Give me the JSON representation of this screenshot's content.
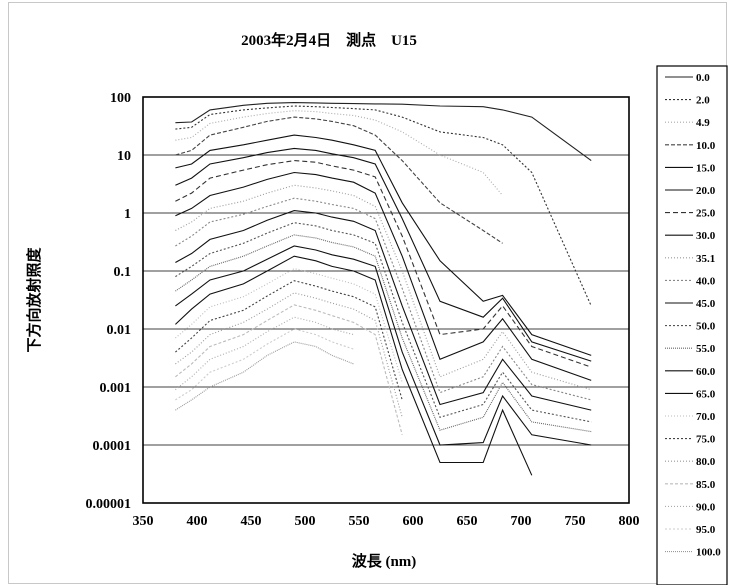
{
  "chart_data": {
    "type": "line",
    "title": "2003年2月4日　測点　U15",
    "xlabel": "波長 (nm)",
    "ylabel": "下方向放射照度",
    "xlim": [
      350,
      800
    ],
    "ylim": [
      1e-05,
      100
    ],
    "y_scale": "log",
    "grid": "horizontal",
    "legend_position": "right",
    "xticks": [
      "350",
      "400",
      "450",
      "500",
      "550",
      "600",
      "650",
      "700",
      "750",
      "800"
    ],
    "yticks": [
      "100",
      "10",
      "1",
      "0.1",
      "0.01",
      "0.001",
      "0.0001",
      "0.00001"
    ],
    "x": [
      380,
      395,
      412,
      443,
      465,
      490,
      510,
      525,
      545,
      565,
      590,
      625,
      665,
      683,
      710,
      765
    ],
    "series": [
      {
        "name": "0.0",
        "values": [
          36,
          37,
          60,
          72,
          78,
          80,
          79,
          78,
          77,
          76,
          75,
          70,
          68,
          60,
          45,
          8
        ]
      },
      {
        "name": "2.0",
        "values": [
          28,
          30,
          50,
          60,
          65,
          70,
          68,
          66,
          63,
          60,
          45,
          25,
          20,
          15,
          5,
          0.025
        ]
      },
      {
        "name": "4.9",
        "values": [
          18,
          20,
          35,
          45,
          52,
          58,
          56,
          52,
          48,
          40,
          25,
          10,
          5,
          2,
          null,
          null
        ]
      },
      {
        "name": "10.0",
        "values": [
          10,
          12,
          22,
          30,
          38,
          45,
          42,
          38,
          32,
          22,
          8,
          1.5,
          0.5,
          0.3,
          null,
          null
        ]
      },
      {
        "name": "15.0",
        "values": [
          6,
          7,
          12,
          15,
          18,
          22,
          20,
          18,
          15,
          12,
          1.5,
          0.15,
          0.03,
          0.038,
          0.008,
          0.0035
        ]
      },
      {
        "name": "20.0",
        "values": [
          3,
          4,
          7,
          9,
          11,
          13,
          12,
          10.5,
          9,
          7,
          0.8,
          0.03,
          0.016,
          0.034,
          0.006,
          0.0028
        ]
      },
      {
        "name": "25.0",
        "values": [
          1.6,
          2.2,
          4,
          5.5,
          6.8,
          8,
          7.5,
          6.5,
          5.5,
          4.2,
          0.4,
          0.008,
          0.01,
          0.025,
          0.005,
          0.0022
        ]
      },
      {
        "name": "30.0",
        "values": [
          0.9,
          1.2,
          2,
          2.8,
          3.8,
          5,
          4.6,
          4,
          3.4,
          2.2,
          0.18,
          0.003,
          0.006,
          0.015,
          0.003,
          0.0013
        ]
      },
      {
        "name": "35.1",
        "values": [
          0.5,
          0.7,
          1.2,
          1.6,
          2.2,
          3,
          2.7,
          2.4,
          2,
          1.3,
          0.1,
          0.0015,
          0.003,
          0.009,
          0.0018,
          0.0009
        ]
      },
      {
        "name": "40.0",
        "values": [
          0.27,
          0.4,
          0.7,
          0.95,
          1.3,
          1.8,
          1.6,
          1.4,
          1.2,
          0.8,
          0.05,
          0.0008,
          0.0015,
          0.005,
          0.0011,
          0.0006
        ]
      },
      {
        "name": "45.0",
        "values": [
          0.14,
          0.2,
          0.35,
          0.5,
          0.75,
          1.1,
          1,
          0.85,
          0.72,
          0.5,
          0.025,
          0.0005,
          0.0008,
          0.003,
          0.0007,
          0.0004
        ]
      },
      {
        "name": "50.0",
        "values": [
          0.08,
          0.12,
          0.2,
          0.3,
          0.45,
          0.68,
          0.6,
          0.5,
          0.42,
          0.3,
          0.013,
          0.0003,
          0.0005,
          0.0018,
          0.0004,
          0.00025
        ]
      },
      {
        "name": "55.0",
        "values": [
          0.045,
          0.07,
          0.12,
          0.18,
          0.27,
          0.42,
          0.37,
          0.31,
          0.26,
          0.18,
          0.007,
          0.00018,
          0.0003,
          0.0012,
          0.00025,
          0.00017
        ]
      },
      {
        "name": "60.0",
        "values": [
          0.025,
          0.04,
          0.07,
          0.1,
          0.16,
          0.27,
          0.23,
          0.19,
          0.16,
          0.12,
          0.004,
          0.0001,
          0.00011,
          0.0007,
          0.00015,
          0.0001
        ]
      },
      {
        "name": "65.0",
        "values": [
          0.012,
          0.022,
          0.04,
          0.06,
          0.1,
          0.18,
          0.15,
          0.12,
          0.1,
          0.07,
          0.002,
          5e-05,
          5e-05,
          0.0004,
          3e-05,
          null
        ]
      },
      {
        "name": "70.0",
        "values": [
          0.007,
          0.012,
          0.024,
          0.036,
          0.06,
          0.11,
          0.09,
          0.075,
          0.06,
          0.04,
          0.0012,
          null,
          null,
          null,
          null,
          null
        ]
      },
      {
        "name": "75.0",
        "values": [
          0.004,
          0.007,
          0.014,
          0.021,
          0.037,
          0.068,
          0.055,
          0.045,
          0.036,
          0.024,
          0.0006,
          null,
          null,
          null,
          null,
          null
        ]
      },
      {
        "name": "80.0",
        "values": [
          0.0025,
          0.004,
          0.008,
          0.013,
          0.022,
          0.042,
          0.034,
          0.028,
          0.022,
          0.014,
          0.0003,
          null,
          null,
          null,
          null,
          null
        ]
      },
      {
        "name": "85.0",
        "values": [
          0.0015,
          0.0025,
          0.005,
          0.008,
          0.014,
          0.026,
          0.021,
          0.017,
          0.013,
          0.008,
          0.00015,
          null,
          null,
          null,
          null,
          null
        ]
      },
      {
        "name": "90.0",
        "values": [
          0.0009,
          0.0015,
          0.003,
          0.005,
          0.009,
          0.016,
          0.013,
          0.01,
          0.008,
          null,
          null,
          null,
          null,
          null,
          null,
          null
        ]
      },
      {
        "name": "95.0",
        "values": [
          0.0006,
          0.0009,
          0.0018,
          0.003,
          0.0055,
          0.01,
          0.008,
          0.006,
          0.0045,
          null,
          null,
          null,
          null,
          null,
          null,
          null
        ]
      },
      {
        "name": "100.0",
        "values": [
          0.0004,
          0.0006,
          0.001,
          0.0018,
          0.0035,
          0.006,
          0.005,
          0.0035,
          0.0025,
          null,
          null,
          null,
          null,
          null,
          null,
          null
        ]
      }
    ]
  }
}
